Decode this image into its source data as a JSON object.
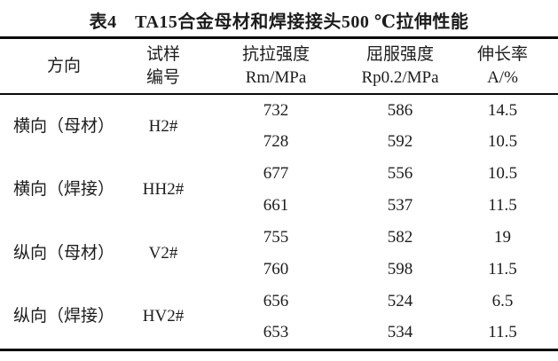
{
  "title": "表4　TA15合金母材和焊接接头500 ℃拉伸性能",
  "columns": {
    "direction": "方向",
    "sample_line1": "试样",
    "sample_line2": "编号",
    "tensile_line1": "抗拉强度",
    "tensile_line2": "Rm/MPa",
    "yield_line1": "屈服强度",
    "yield_line2": "Rp0.2/MPa",
    "elongation_line1": "伸长率",
    "elongation_line2": "A/%"
  },
  "groups": [
    {
      "direction": "横向（母材）",
      "sample": "H2#",
      "rows": [
        {
          "rm": "732",
          "rp": "586",
          "a": "14.5"
        },
        {
          "rm": "728",
          "rp": "592",
          "a": "10.5"
        }
      ]
    },
    {
      "direction": "横向（焊接）",
      "sample": "HH2#",
      "rows": [
        {
          "rm": "677",
          "rp": "556",
          "a": "10.5"
        },
        {
          "rm": "661",
          "rp": "537",
          "a": "11.5"
        }
      ]
    },
    {
      "direction": "纵向（母材）",
      "sample": "V2#",
      "rows": [
        {
          "rm": "755",
          "rp": "582",
          "a": "19"
        },
        {
          "rm": "760",
          "rp": "598",
          "a": "11.5"
        }
      ]
    },
    {
      "direction": "纵向（焊接）",
      "sample": "HV2#",
      "rows": [
        {
          "rm": "656",
          "rp": "524",
          "a": "6.5"
        },
        {
          "rm": "653",
          "rp": "534",
          "a": "11.5"
        }
      ]
    }
  ],
  "colors": {
    "text": "#1c1c1c",
    "rule": "#0a0a0a",
    "background": "#ffffff"
  }
}
